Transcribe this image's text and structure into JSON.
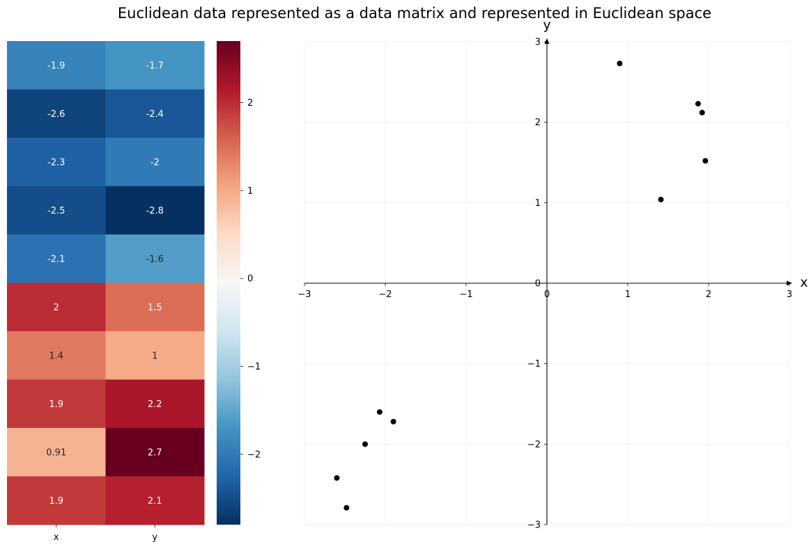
{
  "title": "Euclidean data represented as a data matrix and represented in Euclidean space",
  "chart_data": [
    {
      "type": "heatmap",
      "columns": [
        "x",
        "y"
      ],
      "cells": [
        [
          "-1.9",
          "-1.7"
        ],
        [
          "-2.6",
          "-2.4"
        ],
        [
          "-2.3",
          "-2"
        ],
        [
          "-2.5",
          "-2.8"
        ],
        [
          "-2.1",
          "-1.6"
        ],
        [
          "2",
          "1.5"
        ],
        [
          "1.4",
          "1"
        ],
        [
          "1.9",
          "2.2"
        ],
        [
          "0.91",
          "2.7"
        ],
        [
          "1.9",
          "2.1"
        ]
      ],
      "values": [
        [
          -1.9,
          -1.7
        ],
        [
          -2.6,
          -2.4
        ],
        [
          -2.3,
          -2.0
        ],
        [
          -2.5,
          -2.8
        ],
        [
          -2.1,
          -1.6
        ],
        [
          2.0,
          1.5
        ],
        [
          1.4,
          1.0
        ],
        [
          1.9,
          2.2
        ],
        [
          0.91,
          2.7
        ],
        [
          1.9,
          2.1
        ]
      ],
      "colormap": "RdBu_r",
      "vmin": -2.8,
      "vmax": 2.7,
      "colorbar_ticks": [
        2,
        1,
        0,
        -1,
        -2
      ],
      "colorbar_tick_labels": [
        "2",
        "1",
        "0",
        "−1",
        "−2"
      ]
    },
    {
      "type": "scatter",
      "xlabel": "x",
      "ylabel": "y",
      "xlim": [
        -3,
        3
      ],
      "ylim": [
        -3,
        3
      ],
      "grid": true,
      "point_color": "#000000",
      "xticks": [
        -3,
        -2,
        -1,
        0,
        1,
        2,
        3
      ],
      "yticks": [
        3,
        2,
        1,
        0,
        -1,
        -2,
        -3
      ],
      "xtick_labels": [
        "−3",
        "−2",
        "−1",
        "0",
        "1",
        "2",
        "3"
      ],
      "ytick_labels": [
        "3",
        "2",
        "1",
        "0",
        "−1",
        "−2",
        "−3"
      ],
      "points": [
        {
          "x": -1.9,
          "y": -1.72
        },
        {
          "x": -2.6,
          "y": -2.42
        },
        {
          "x": -2.25,
          "y": -2.0
        },
        {
          "x": -2.48,
          "y": -2.79
        },
        {
          "x": -2.07,
          "y": -1.6
        },
        {
          "x": 1.96,
          "y": 1.52
        },
        {
          "x": 1.41,
          "y": 1.04
        },
        {
          "x": 1.87,
          "y": 2.23
        },
        {
          "x": 0.9,
          "y": 2.73
        },
        {
          "x": 1.92,
          "y": 2.12
        }
      ]
    }
  ]
}
